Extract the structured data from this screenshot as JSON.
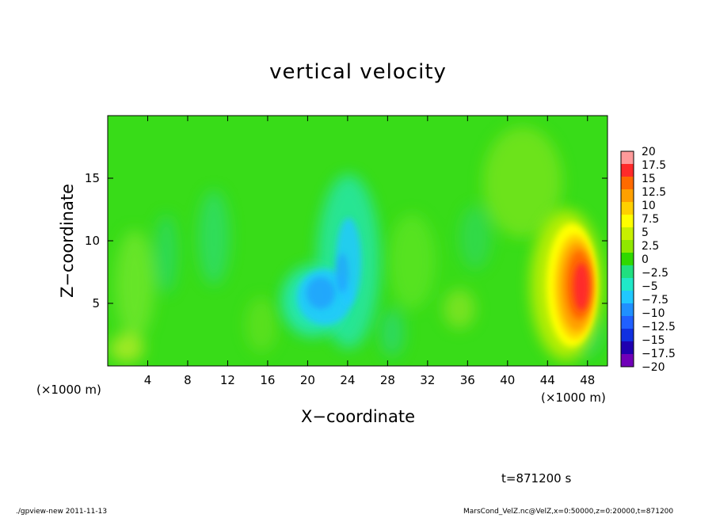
{
  "chart_data": {
    "type": "heatmap",
    "title": "vertical velocity",
    "xlabel": "X−coordinate",
    "ylabel": "Z−coordinate",
    "x_unit_left": "(×1000 m)",
    "x_unit_right": "(×1000 m)",
    "xlim": [
      0,
      50
    ],
    "ylim": [
      0,
      20
    ],
    "xticks": [
      4,
      8,
      12,
      16,
      20,
      24,
      28,
      32,
      36,
      40,
      44,
      48
    ],
    "yticks": [
      5,
      10,
      15
    ],
    "colorbar": {
      "levels": [
        "20",
        "17.5",
        "15",
        "12.5",
        "10",
        "7.5",
        "5",
        "2.5",
        "0",
        "−2.5",
        "−5",
        "−7.5",
        "−10",
        "−12.5",
        "−15",
        "−17.5",
        "−20"
      ],
      "values": [
        20,
        17.5,
        15,
        12.5,
        10,
        7.5,
        5,
        2.5,
        0,
        -2.5,
        -5,
        -7.5,
        -10,
        -12.5,
        -15,
        -17.5,
        -20
      ],
      "colors": [
        "#ff9a9a",
        "#ff2a2a",
        "#ff6a00",
        "#ffa000",
        "#ffd000",
        "#ffff00",
        "#c8f000",
        "#90e800",
        "#30d800",
        "#20e080",
        "#20e8c8",
        "#20c8ff",
        "#2090ff",
        "#2060ff",
        "#1030e0",
        "#2000b0",
        "#7000b8"
      ]
    },
    "features": [
      {
        "name": "updraft",
        "x": 46.5,
        "z": 6.5,
        "peak": 15
      },
      {
        "name": "downdraft",
        "x": 23.5,
        "z": 7,
        "peak": -12
      }
    ]
  },
  "annotations": {
    "time": "t=871200 s",
    "footer_left": "./gpview-new  2011-11-13",
    "footer_right": "MarsCond_VelZ.nc@VelZ,x=0:50000,z=0:20000,t=871200"
  }
}
